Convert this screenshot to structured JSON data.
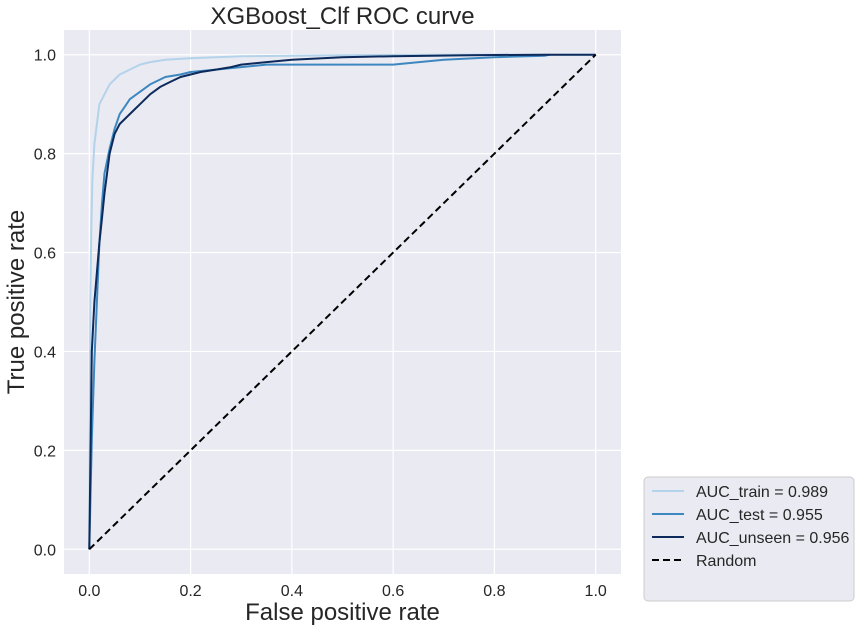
{
  "chart_data": {
    "type": "line",
    "title": "XGBoost_Clf ROC curve",
    "xlabel": "False positive rate",
    "ylabel": "True positive rate",
    "xlim": [
      -0.05,
      1.05
    ],
    "ylim": [
      -0.05,
      1.05
    ],
    "x_ticks": [
      "0.0",
      "0.2",
      "0.4",
      "0.6",
      "0.8",
      "1.0"
    ],
    "y_ticks": [
      "0.0",
      "0.2",
      "0.4",
      "0.6",
      "0.8",
      "1.0"
    ],
    "grid": true,
    "legend_position": "outside-lower-right",
    "colors": {
      "background": "#eaeaf2",
      "grid": "#ffffff",
      "text": "#262626"
    },
    "series": [
      {
        "name": "AUC_train = 0.989",
        "color": "#b3d3ea",
        "style": "solid",
        "x": [
          0,
          0.002,
          0.004,
          0.006,
          0.01,
          0.015,
          0.02,
          0.03,
          0.04,
          0.05,
          0.06,
          0.08,
          0.1,
          0.12,
          0.15,
          0.2,
          0.25,
          0.3,
          0.4,
          0.5,
          0.7,
          1.0
        ],
        "y": [
          0,
          0.5,
          0.65,
          0.75,
          0.82,
          0.86,
          0.9,
          0.92,
          0.94,
          0.95,
          0.96,
          0.97,
          0.98,
          0.985,
          0.99,
          0.993,
          0.995,
          0.997,
          0.998,
          0.999,
          1.0,
          1.0
        ]
      },
      {
        "name": "AUC_test = 0.955",
        "color": "#3d87c0",
        "style": "solid",
        "x": [
          0,
          0.005,
          0.01,
          0.015,
          0.02,
          0.025,
          0.03,
          0.04,
          0.05,
          0.06,
          0.07,
          0.08,
          0.1,
          0.12,
          0.15,
          0.18,
          0.2,
          0.25,
          0.3,
          0.35,
          0.4,
          0.5,
          0.6,
          0.7,
          0.8,
          0.9,
          0.91
        ],
        "y": [
          0,
          0.22,
          0.38,
          0.5,
          0.62,
          0.7,
          0.76,
          0.81,
          0.85,
          0.88,
          0.895,
          0.91,
          0.925,
          0.94,
          0.955,
          0.96,
          0.965,
          0.97,
          0.975,
          0.98,
          0.98,
          0.98,
          0.98,
          0.99,
          0.995,
          0.998,
          1.0
        ]
      },
      {
        "name": "AUC_unseen = 0.956",
        "color": "#0c2a5b",
        "style": "solid",
        "x": [
          0,
          0.003,
          0.005,
          0.01,
          0.015,
          0.02,
          0.025,
          0.03,
          0.04,
          0.05,
          0.06,
          0.07,
          0.08,
          0.09,
          0.1,
          0.12,
          0.14,
          0.16,
          0.18,
          0.2,
          0.22,
          0.25,
          0.28,
          0.3,
          0.35,
          0.4,
          0.5,
          0.6,
          0.75,
          0.9,
          1.0
        ],
        "y": [
          0,
          0.24,
          0.4,
          0.5,
          0.56,
          0.62,
          0.67,
          0.72,
          0.8,
          0.84,
          0.86,
          0.87,
          0.88,
          0.89,
          0.9,
          0.92,
          0.935,
          0.945,
          0.955,
          0.96,
          0.965,
          0.97,
          0.975,
          0.98,
          0.985,
          0.99,
          0.995,
          0.997,
          0.999,
          1.0,
          1.0
        ]
      },
      {
        "name": "Random",
        "color": "#000000",
        "style": "dashed",
        "x": [
          0,
          1
        ],
        "y": [
          0,
          1
        ]
      }
    ]
  }
}
